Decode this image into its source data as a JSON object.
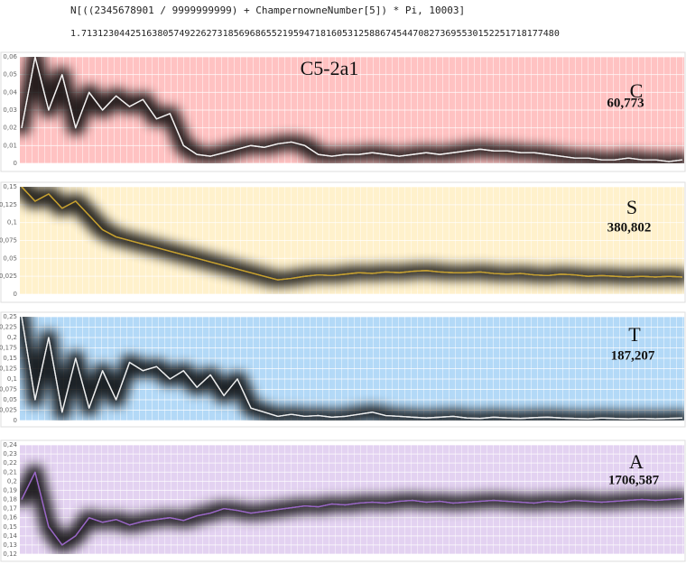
{
  "header": {
    "input": "N[((2345678901 / 9999999999) + ChampernowneNumber[5]) * Pi, 10003]",
    "output": "1.7131230442516380574922627318569686552195947181605312588674544708273695530152251718177480"
  },
  "chart_data": [
    {
      "type": "line",
      "title": "C5-2a1",
      "annotations": [
        "C",
        "60,773"
      ],
      "background": "#ffc2c2",
      "color": "#f4f4f4",
      "ylim": [
        0,
        0.06
      ],
      "yticks": [
        0,
        {
          "value": 0.01,
          "label": "0,01"
        },
        {
          "value": 0.02,
          "label": "0,02"
        },
        {
          "value": 0.03,
          "label": "0,03"
        },
        {
          "value": 0.04,
          "label": "0,04"
        },
        {
          "value": 0.05,
          "label": "0,05"
        },
        {
          "value": 0.06,
          "label": "0,06"
        }
      ],
      "values": [
        0.02,
        0.06,
        0.03,
        0.05,
        0.02,
        0.04,
        0.03,
        0.038,
        0.032,
        0.036,
        0.025,
        0.028,
        0.01,
        0.005,
        0.004,
        0.006,
        0.008,
        0.01,
        0.009,
        0.011,
        0.012,
        0.01,
        0.005,
        0.004,
        0.005,
        0.005,
        0.006,
        0.005,
        0.004,
        0.005,
        0.006,
        0.005,
        0.006,
        0.007,
        0.008,
        0.007,
        0.007,
        0.006,
        0.006,
        0.005,
        0.004,
        0.003,
        0.003,
        0.002,
        0.002,
        0.003,
        0.002,
        0.002,
        0.001,
        0.002
      ]
    },
    {
      "type": "line",
      "annotations": [
        "S",
        "380,802"
      ],
      "background": "#fff1cc",
      "color": "#c9a22e",
      "ylim": [
        0,
        0.15
      ],
      "yticks": [
        0,
        {
          "value": 0.025,
          "label": "0,025"
        },
        {
          "value": 0.05,
          "label": "0,05"
        },
        {
          "value": 0.075,
          "label": "0,075"
        },
        {
          "value": 0.1,
          "label": "0,1"
        },
        {
          "value": 0.125,
          "label": "0,125"
        },
        {
          "value": 0.15,
          "label": "0,15"
        }
      ],
      "values": [
        0.15,
        0.13,
        0.14,
        0.12,
        0.13,
        0.11,
        0.09,
        0.08,
        0.075,
        0.07,
        0.065,
        0.06,
        0.055,
        0.05,
        0.045,
        0.04,
        0.035,
        0.03,
        0.025,
        0.02,
        0.022,
        0.025,
        0.027,
        0.026,
        0.028,
        0.03,
        0.029,
        0.031,
        0.03,
        0.032,
        0.033,
        0.031,
        0.03,
        0.03,
        0.031,
        0.029,
        0.028,
        0.029,
        0.027,
        0.026,
        0.028,
        0.027,
        0.025,
        0.026,
        0.025,
        0.024,
        0.025,
        0.024,
        0.025,
        0.024
      ]
    },
    {
      "type": "line",
      "annotations": [
        "T",
        "187,207"
      ],
      "background": "#b3d9f7",
      "color": "#f0f0f0",
      "ylim": [
        0,
        0.25
      ],
      "yticks": [
        0,
        {
          "value": 0.025,
          "label": "0,025"
        },
        {
          "value": 0.05,
          "label": "0,05"
        },
        {
          "value": 0.075,
          "label": "0,075"
        },
        {
          "value": 0.1,
          "label": "0,1"
        },
        {
          "value": 0.125,
          "label": "0,125"
        },
        {
          "value": 0.15,
          "label": "0,15"
        },
        {
          "value": 0.175,
          "label": "0,175"
        },
        {
          "value": 0.2,
          "label": "0,2"
        },
        {
          "value": 0.225,
          "label": "0,225"
        },
        {
          "value": 0.25,
          "label": "0,25"
        }
      ],
      "values": [
        0.25,
        0.05,
        0.2,
        0.02,
        0.15,
        0.03,
        0.12,
        0.05,
        0.14,
        0.12,
        0.13,
        0.1,
        0.12,
        0.08,
        0.11,
        0.06,
        0.1,
        0.03,
        0.02,
        0.01,
        0.015,
        0.01,
        0.012,
        0.008,
        0.01,
        0.015,
        0.02,
        0.012,
        0.01,
        0.008,
        0.006,
        0.008,
        0.01,
        0.006,
        0.005,
        0.008,
        0.006,
        0.005,
        0.007,
        0.008,
        0.006,
        0.005,
        0.004,
        0.006,
        0.005,
        0.004,
        0.005,
        0.004,
        0.005,
        0.006
      ]
    },
    {
      "type": "line",
      "annotations": [
        "A",
        "1706,587"
      ],
      "background": "#e3d2f1",
      "color": "#9a66c8",
      "ylim": [
        0.12,
        0.24
      ],
      "yticks": [
        {
          "value": 0.12,
          "label": "0,12"
        },
        {
          "value": 0.13,
          "label": "0,13"
        },
        {
          "value": 0.14,
          "label": "0,14"
        },
        {
          "value": 0.15,
          "label": "0,15"
        },
        {
          "value": 0.16,
          "label": "0,16"
        },
        {
          "value": 0.17,
          "label": "0,17"
        },
        {
          "value": 0.18,
          "label": "0,18"
        },
        {
          "value": 0.19,
          "label": "0,19"
        },
        {
          "value": 0.2,
          "label": "0,2"
        },
        {
          "value": 0.21,
          "label": "0,21"
        },
        {
          "value": 0.22,
          "label": "0,22"
        },
        {
          "value": 0.23,
          "label": "0,23"
        },
        {
          "value": 0.24,
          "label": "0,24"
        }
      ],
      "values": [
        0.18,
        0.21,
        0.15,
        0.13,
        0.14,
        0.16,
        0.155,
        0.158,
        0.152,
        0.156,
        0.158,
        0.16,
        0.157,
        0.162,
        0.165,
        0.17,
        0.168,
        0.165,
        0.167,
        0.169,
        0.171,
        0.173,
        0.172,
        0.175,
        0.174,
        0.176,
        0.177,
        0.176,
        0.178,
        0.179,
        0.177,
        0.178,
        0.176,
        0.177,
        0.178,
        0.179,
        0.178,
        0.177,
        0.176,
        0.178,
        0.177,
        0.179,
        0.178,
        0.177,
        0.178,
        0.179,
        0.18,
        0.179,
        0.18,
        0.181
      ]
    }
  ]
}
